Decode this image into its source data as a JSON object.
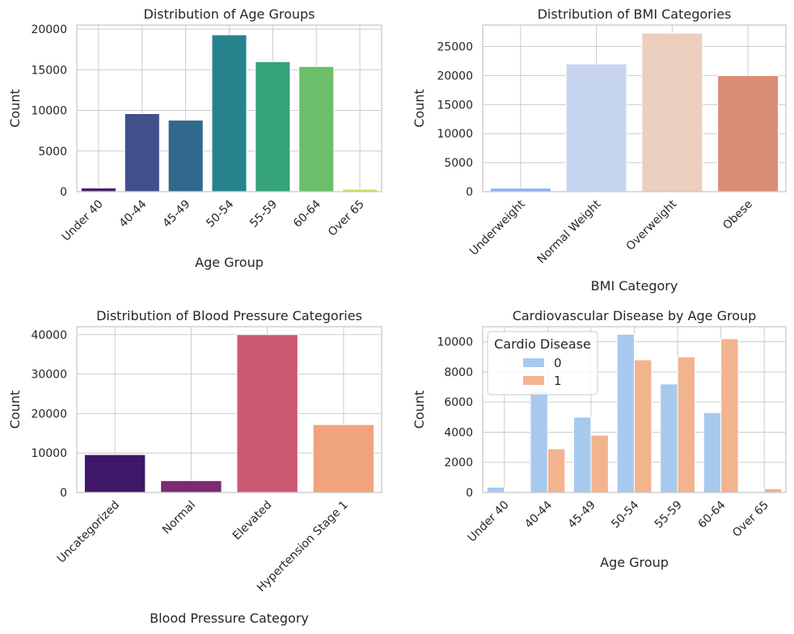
{
  "chart_data": [
    {
      "type": "bar",
      "title": "Distribution of Age Groups",
      "xlabel": "Age Group",
      "ylabel": "Count",
      "categories": [
        "Under 40",
        "40-44",
        "45-49",
        "50-54",
        "55-59",
        "60-64",
        "Over 65"
      ],
      "values": [
        450,
        9600,
        8800,
        19300,
        16000,
        15400,
        300
      ],
      "colors": [
        "#45206d",
        "#414f8a",
        "#31698d",
        "#26838e",
        "#35a37a",
        "#6cbe6a",
        "#cddf57"
      ],
      "ylim": [
        0,
        20500
      ],
      "yticks": [
        0,
        5000,
        10000,
        15000,
        20000
      ],
      "yticklabels": [
        "0",
        "5000",
        "10000",
        "15000",
        "20000"
      ],
      "grid": true
    },
    {
      "type": "bar",
      "title": "Distribution of BMI Categories",
      "xlabel": "BMI Category",
      "ylabel": "Count",
      "categories": [
        "Underweight",
        "Normal Weight",
        "Overweight",
        "Obese"
      ],
      "values": [
        600,
        22000,
        27300,
        20000
      ],
      "colors": [
        "#8fb0f2",
        "#c7d5f1",
        "#eccebf",
        "#dc8d75"
      ],
      "ylim": [
        0,
        28700
      ],
      "yticks": [
        0,
        5000,
        10000,
        15000,
        20000,
        25000
      ],
      "yticklabels": [
        "0",
        "5000",
        "10000",
        "15000",
        "20000",
        "25000"
      ],
      "grid": true
    },
    {
      "type": "bar",
      "title": "Distribution of Blood Pressure Categories",
      "xlabel": "Blood Pressure Category",
      "ylabel": "Count",
      "categories": [
        "Uncategorized",
        "Normal",
        "Elevated",
        "Hypertension Stage 1"
      ],
      "values": [
        9600,
        3000,
        40000,
        17200
      ],
      "colors": [
        "#3f1768",
        "#7c2b73",
        "#cb5871",
        "#f0a47c"
      ],
      "ylim": [
        0,
        42000
      ],
      "yticks": [
        0,
        10000,
        20000,
        30000,
        40000
      ],
      "yticklabels": [
        "0",
        "10000",
        "20000",
        "30000",
        "40000"
      ],
      "grid": true
    },
    {
      "type": "bar",
      "title": "Cardiovascular Disease by Age Group",
      "xlabel": "Age Group",
      "ylabel": "Count",
      "categories": [
        "Under 40",
        "40-44",
        "45-49",
        "50-54",
        "55-59",
        "60-64",
        "Over 65"
      ],
      "series": [
        {
          "name": "0",
          "values": [
            350,
            6700,
            5000,
            10500,
            7200,
            5300,
            0
          ],
          "color": "#a8c9ee"
        },
        {
          "name": "1",
          "values": [
            60,
            2900,
            3800,
            8800,
            9000,
            10200,
            250
          ],
          "color": "#f2b38f"
        }
      ],
      "legend": {
        "title": "Cardio Disease",
        "position": "top-left"
      },
      "ylim": [
        0,
        11000
      ],
      "yticks": [
        0,
        2000,
        4000,
        6000,
        8000,
        10000
      ],
      "yticklabels": [
        "0",
        "2000",
        "4000",
        "6000",
        "8000",
        "10000"
      ],
      "grid": true
    }
  ]
}
